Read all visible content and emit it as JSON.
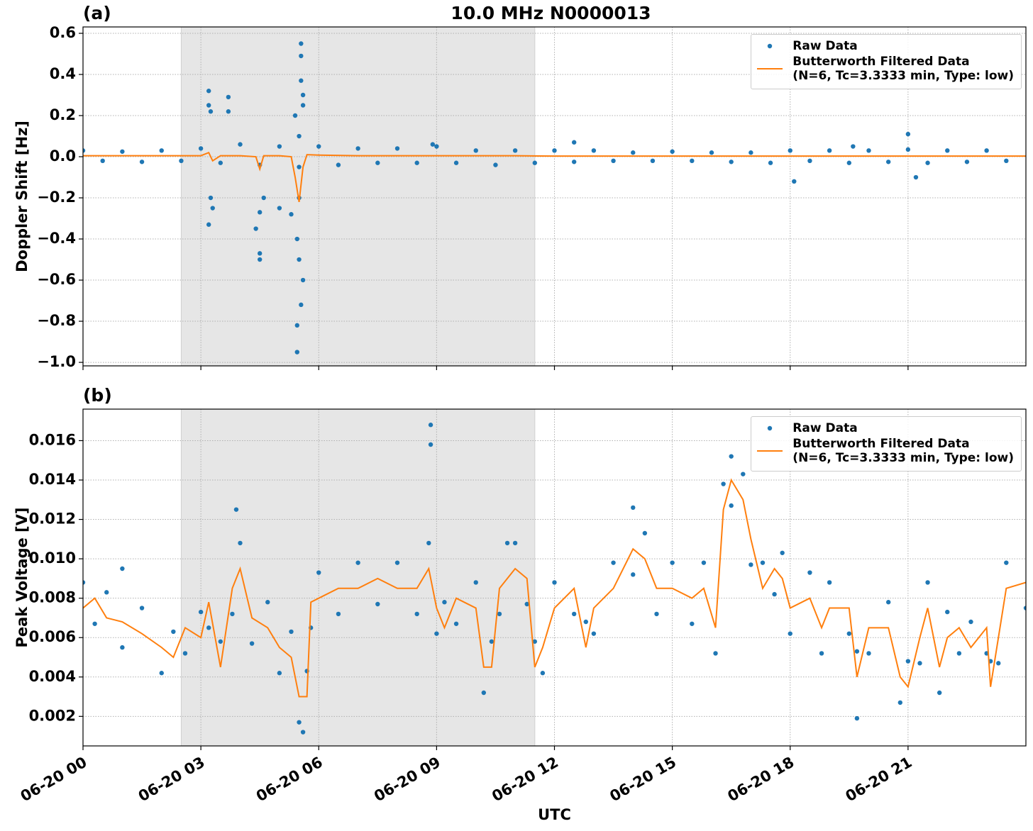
{
  "chart_data": [
    {
      "type": "line",
      "title": "10.0 MHz N0000013",
      "panel_label": "(a)",
      "ylabel": "Doppler Shift [Hz]",
      "xlim": [
        0,
        24
      ],
      "xticks": [
        0,
        3,
        6,
        9,
        12,
        15,
        18,
        21
      ],
      "ylim": [
        -1.017,
        0.631
      ],
      "yticks": [
        {
          "value": -1.0,
          "label": "−1.0"
        },
        {
          "value": -0.8,
          "label": "−0.8"
        },
        {
          "value": -0.6,
          "label": "−0.6"
        },
        {
          "value": -0.4,
          "label": "−0.4"
        },
        {
          "value": -0.2,
          "label": "−0.2"
        },
        {
          "value": 0.0,
          "label": "0.0"
        },
        {
          "value": 0.2,
          "label": "0.2"
        },
        {
          "value": 0.4,
          "label": "0.4"
        },
        {
          "value": 0.6,
          "label": "0.6"
        }
      ],
      "grid": true,
      "shade": [
        2.5,
        11.5
      ],
      "legend": "upper right",
      "series": [
        {
          "name": "Raw Data",
          "style": "dots",
          "color": "#1f77b4",
          "x": [
            0,
            0.5,
            1,
            1.5,
            2,
            2.5,
            3,
            3.5,
            4,
            4.5,
            5,
            5.5,
            6,
            6.5,
            7,
            7.5,
            8,
            8.5,
            9,
            9.5,
            10,
            10.5,
            11,
            11.5,
            12,
            12.5,
            13,
            13.5,
            14,
            14.5,
            15,
            15.5,
            16,
            16.5,
            17,
            17.5,
            18,
            18.5,
            19,
            19.5,
            20,
            20.5,
            21,
            21.5,
            22,
            22.5,
            23,
            23.5,
            3.2,
            3.2,
            3.25,
            3.3,
            3.2,
            3.25,
            3.7,
            3.7,
            4.5,
            4.5,
            4.4,
            4.5,
            4.6,
            5.0,
            5.3,
            5.45,
            5.45,
            5.55,
            5.55,
            5.55,
            5.6,
            5.6,
            5.55,
            5.5,
            5.45,
            5.6,
            5.4,
            5.5,
            5.5,
            8.9,
            12.5,
            18.1,
            21.0,
            21.2,
            19.6
          ],
          "values": [
            0.03,
            -0.02,
            0.025,
            -0.025,
            0.03,
            -0.02,
            0.04,
            -0.03,
            0.06,
            -0.04,
            0.05,
            -0.05,
            0.05,
            -0.04,
            0.04,
            -0.03,
            0.04,
            -0.03,
            0.05,
            -0.03,
            0.03,
            -0.04,
            0.03,
            -0.03,
            0.03,
            -0.025,
            0.03,
            -0.02,
            0.02,
            -0.02,
            0.025,
            -0.02,
            0.02,
            -0.025,
            0.02,
            -0.03,
            0.03,
            -0.02,
            0.03,
            -0.03,
            0.03,
            -0.025,
            0.035,
            -0.03,
            0.03,
            -0.025,
            0.03,
            -0.02,
            0.32,
            0.25,
            0.22,
            -0.25,
            -0.33,
            -0.2,
            0.29,
            0.22,
            -0.5,
            -0.47,
            -0.35,
            -0.27,
            -0.2,
            -0.25,
            -0.28,
            -0.82,
            -0.95,
            0.55,
            0.49,
            0.37,
            0.3,
            -0.6,
            -0.72,
            -0.5,
            -0.4,
            0.25,
            0.2,
            -0.2,
            0.1,
            0.06,
            0.07,
            -0.12,
            0.11,
            -0.1,
            0.05
          ]
        },
        {
          "name": "Butterworth Filtered Data\n(N=6, Tc=3.3333 min, Type: low)",
          "style": "line",
          "color": "#ff7f0e",
          "x": [
            0,
            1,
            2,
            3,
            3.2,
            3.3,
            3.5,
            4,
            4.4,
            4.5,
            4.6,
            5,
            5.3,
            5.4,
            5.5,
            5.6,
            5.7,
            6,
            7,
            8,
            9,
            10,
            11,
            12,
            13,
            14,
            15,
            16,
            17,
            18,
            19,
            20,
            21,
            22,
            23,
            24
          ],
          "values": [
            0.005,
            0.005,
            0.005,
            0.005,
            0.02,
            -0.02,
            0.005,
            0.005,
            0,
            -0.06,
            0.005,
            0.005,
            0,
            -0.1,
            -0.22,
            -0.05,
            0.01,
            0.008,
            0.005,
            0.005,
            0.005,
            0.005,
            0.005,
            0.003,
            0.003,
            0.003,
            0.003,
            0.003,
            0.003,
            0.003,
            0.003,
            0.003,
            0.003,
            0.003,
            0.003,
            0.003
          ]
        }
      ]
    },
    {
      "type": "line",
      "panel_label": "(b)",
      "ylabel": "Peak Voltage [V]",
      "xlabel": "UTC",
      "xlim": [
        0,
        24
      ],
      "xticks": [
        {
          "value": 0,
          "label": "06-20 00"
        },
        {
          "value": 3,
          "label": "06-20 03"
        },
        {
          "value": 6,
          "label": "06-20 06"
        },
        {
          "value": 9,
          "label": "06-20 09"
        },
        {
          "value": 12,
          "label": "06-20 12"
        },
        {
          "value": 15,
          "label": "06-20 15"
        },
        {
          "value": 18,
          "label": "06-20 18"
        },
        {
          "value": 21,
          "label": "06-20 21"
        }
      ],
      "ylim": [
        0.0005,
        0.0176
      ],
      "yticks": [
        0.002,
        0.004,
        0.006,
        0.008,
        {
          "value": 0.01,
          "label": "0.010"
        },
        0.012,
        0.014,
        0.016
      ],
      "grid": true,
      "shade": [
        2.5,
        11.5
      ],
      "legend": "upper right",
      "series": [
        {
          "name": "Raw Data",
          "style": "dots",
          "color": "#1f77b4",
          "x": [
            0,
            0.3,
            0.6,
            1,
            1.5,
            2,
            2.3,
            2.6,
            3,
            3.2,
            3.5,
            3.8,
            4,
            4.3,
            4.7,
            5,
            5.3,
            5.5,
            5.7,
            5.8,
            6,
            6.5,
            7,
            7.5,
            8,
            8.5,
            8.8,
            9,
            9.2,
            9.5,
            10,
            10.2,
            10.4,
            10.6,
            11,
            11.3,
            11.5,
            11.7,
            12,
            12.5,
            12.8,
            13,
            13.5,
            14,
            14.3,
            14.6,
            15,
            15.5,
            15.8,
            16.1,
            16.3,
            16.5,
            16.8,
            17,
            17.3,
            17.6,
            17.8,
            18,
            18.5,
            18.8,
            19,
            19.5,
            19.7,
            20,
            20.5,
            20.8,
            21,
            21.3,
            21.5,
            21.8,
            22,
            22.3,
            22.6,
            23,
            23.1,
            23.3,
            23.5,
            24,
            8.85,
            5.6,
            19.7,
            3.9,
            14,
            16.5,
            8.85,
            1.0,
            10.8
          ],
          "values": [
            0.0088,
            0.0067,
            0.0083,
            0.0055,
            0.0075,
            0.0042,
            0.0063,
            0.0052,
            0.0073,
            0.0065,
            0.0058,
            0.0072,
            0.0108,
            0.0057,
            0.0078,
            0.0042,
            0.0063,
            0.0017,
            0.0043,
            0.0065,
            0.0093,
            0.0072,
            0.0098,
            0.0077,
            0.0098,
            0.0072,
            0.0108,
            0.0062,
            0.0078,
            0.0067,
            0.0088,
            0.0032,
            0.0058,
            0.0072,
            0.0108,
            0.0077,
            0.0058,
            0.0042,
            0.0088,
            0.0072,
            0.0068,
            0.0062,
            0.0098,
            0.0092,
            0.0113,
            0.0072,
            0.0098,
            0.0067,
            0.0098,
            0.0052,
            0.0138,
            0.0127,
            0.0143,
            0.0097,
            0.0098,
            0.0082,
            0.0103,
            0.0062,
            0.0093,
            0.0052,
            0.0088,
            0.0062,
            0.0053,
            0.0052,
            0.0078,
            0.0027,
            0.0048,
            0.0047,
            0.0088,
            0.0032,
            0.0073,
            0.0052,
            0.0068,
            0.0052,
            0.0048,
            0.0047,
            0.0098,
            0.0075,
            0.0168,
            0.0012,
            0.0019,
            0.0125,
            0.0126,
            0.0152,
            0.0158,
            0.0095,
            0.0108
          ]
        },
        {
          "name": "Butterworth Filtered Data\n(N=6, Tc=3.3333 min, Type: low)",
          "style": "line",
          "color": "#ff7f0e",
          "x": [
            0,
            0.3,
            0.6,
            1,
            1.5,
            2,
            2.3,
            2.6,
            3,
            3.2,
            3.5,
            3.8,
            4,
            4.3,
            4.7,
            5,
            5.3,
            5.5,
            5.7,
            5.8,
            6,
            6.5,
            7,
            7.5,
            8,
            8.5,
            8.8,
            9,
            9.2,
            9.5,
            10,
            10.2,
            10.4,
            10.6,
            11,
            11.3,
            11.5,
            11.7,
            12,
            12.5,
            12.8,
            13,
            13.5,
            14,
            14.3,
            14.6,
            15,
            15.5,
            15.8,
            16.1,
            16.3,
            16.5,
            16.8,
            17,
            17.3,
            17.6,
            17.8,
            18,
            18.5,
            18.8,
            19,
            19.5,
            19.7,
            20,
            20.5,
            20.8,
            21,
            21.3,
            21.5,
            21.8,
            22,
            22.3,
            22.6,
            23,
            23.1,
            23.3,
            23.5,
            24
          ],
          "values": [
            0.0075,
            0.008,
            0.007,
            0.0068,
            0.0062,
            0.0055,
            0.005,
            0.0065,
            0.006,
            0.0078,
            0.0045,
            0.0085,
            0.0095,
            0.007,
            0.0065,
            0.0055,
            0.005,
            0.003,
            0.003,
            0.0078,
            0.008,
            0.0085,
            0.0085,
            0.009,
            0.0085,
            0.0085,
            0.0095,
            0.0075,
            0.0065,
            0.008,
            0.0075,
            0.0045,
            0.0045,
            0.0085,
            0.0095,
            0.009,
            0.0045,
            0.0055,
            0.0075,
            0.0085,
            0.0055,
            0.0075,
            0.0085,
            0.0105,
            0.01,
            0.0085,
            0.0085,
            0.008,
            0.0085,
            0.0065,
            0.0125,
            0.014,
            0.013,
            0.011,
            0.0085,
            0.0095,
            0.009,
            0.0075,
            0.008,
            0.0065,
            0.0075,
            0.0075,
            0.004,
            0.0065,
            0.0065,
            0.004,
            0.0035,
            0.006,
            0.0075,
            0.0045,
            0.006,
            0.0065,
            0.0055,
            0.0065,
            0.0035,
            0.006,
            0.0085,
            0.0088
          ]
        }
      ]
    }
  ]
}
